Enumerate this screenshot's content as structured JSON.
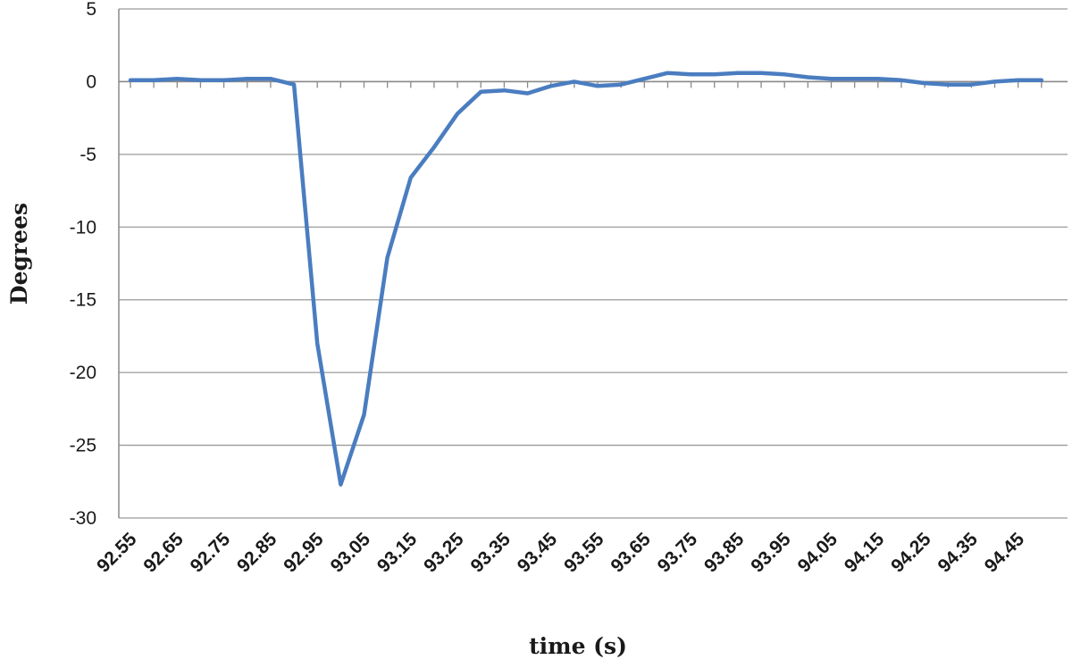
{
  "chart_data": {
    "type": "line",
    "title": "",
    "xlabel": "time (s)",
    "ylabel": "Degrees",
    "ylim": [
      -30,
      5
    ],
    "yticks": [
      "5",
      "0",
      "-5",
      "-10",
      "-15",
      "-20",
      "-25",
      "-30"
    ],
    "ytick_values": [
      5,
      0,
      -5,
      -10,
      -15,
      -20,
      -25,
      -30
    ],
    "xtick_labels": [
      "92.55",
      "92.65",
      "92.75",
      "92.85",
      "92.95",
      "93.05",
      "93.15",
      "93.25",
      "93.35",
      "93.45",
      "93.55",
      "93.65",
      "93.75",
      "93.85",
      "93.95",
      "94.05",
      "94.15",
      "94.25",
      "94.35",
      "94.45"
    ],
    "grid": "horizontal",
    "legend": "none",
    "line_color": "#4a7dc0",
    "series": [
      {
        "x": [
          92.55,
          92.6,
          92.65,
          92.7,
          92.75,
          92.8,
          92.85,
          92.9,
          92.95,
          93.0,
          93.05,
          93.1,
          93.15,
          93.2,
          93.25,
          93.3,
          93.35,
          93.4,
          93.45,
          93.5,
          93.55,
          93.6,
          93.65,
          93.7,
          93.75,
          93.8,
          93.85,
          93.9,
          93.95,
          94.0,
          94.05,
          94.1,
          94.15,
          94.2,
          94.25,
          94.3,
          94.35,
          94.4,
          94.45,
          94.5
        ],
        "values": [
          0.1,
          0.1,
          0.2,
          0.1,
          0.1,
          0.2,
          0.2,
          -0.2,
          -18.0,
          -27.7,
          -22.9,
          -12.1,
          -6.6,
          -4.5,
          -2.2,
          -0.7,
          -0.6,
          -0.8,
          -0.3,
          0.0,
          -0.3,
          -0.2,
          0.2,
          0.6,
          0.5,
          0.5,
          0.6,
          0.6,
          0.5,
          0.3,
          0.2,
          0.2,
          0.2,
          0.1,
          -0.1,
          -0.2,
          -0.2,
          0.0,
          0.1,
          0.1
        ]
      }
    ]
  }
}
